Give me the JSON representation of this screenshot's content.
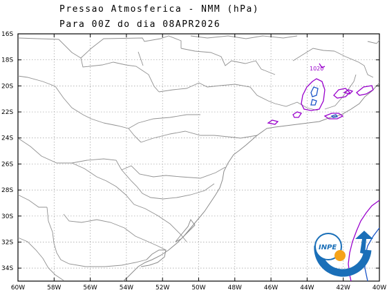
{
  "header": {
    "title_line1": "Pressao Atmosferica - NMM (hPa)",
    "title_line2": "Para 00Z do dia 08APR2026"
  },
  "map": {
    "lat_ticks": [
      "16S",
      "18S",
      "20S",
      "22S",
      "24S",
      "26S",
      "28S",
      "30S",
      "32S",
      "34S"
    ],
    "lon_ticks": [
      "60W",
      "58W",
      "56W",
      "54W",
      "52W",
      "50W",
      "48W",
      "46W",
      "44W",
      "42W",
      "40W"
    ],
    "isobar_label": "1020",
    "colors": {
      "border": "#909090",
      "isobar_1020": "#9900cc",
      "isobar_low": "#1a55c8",
      "grid": "#9a9a9a"
    }
  },
  "logo": {
    "text": "INPE",
    "colors": {
      "blue": "#1a6fb8",
      "orange": "#f5a31a"
    }
  }
}
